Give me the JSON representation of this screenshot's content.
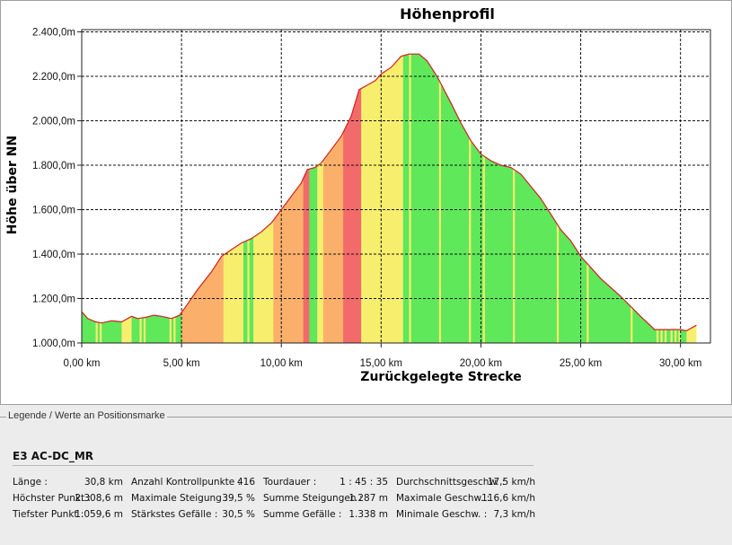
{
  "chart_data": {
    "type": "area",
    "title": "Höhenprofil",
    "xlabel": "Zurückgelegte Strecke",
    "ylabel": "Höhe über NN",
    "x_ticks": [
      "0,00 km",
      "5,00 km",
      "10,00 km",
      "15,00 km",
      "20,00 km",
      "25,00 km",
      "30,00 km"
    ],
    "y_ticks": [
      "1.000,0m",
      "1.200,0m",
      "1.400,0m",
      "1.600,0m",
      "1.800,0m",
      "2.000,0m",
      "2.200,0m",
      "2.400,0m"
    ],
    "xlim": [
      0,
      31.5
    ],
    "ylim": [
      1000,
      2410
    ],
    "grid": true,
    "x": [
      0,
      0.3,
      0.7,
      1.0,
      1.5,
      2.0,
      2.5,
      2.8,
      3.2,
      3.6,
      4.0,
      4.5,
      4.9,
      5.3,
      5.8,
      6.5,
      7.0,
      7.5,
      8.0,
      8.5,
      9.0,
      9.5,
      10.0,
      10.5,
      11.0,
      11.3,
      11.7,
      12.0,
      12.5,
      13.0,
      13.5,
      13.9,
      14.3,
      14.7,
      15.0,
      15.5,
      16.0,
      16.4,
      16.9,
      17.3,
      17.8,
      18.5,
      19.0,
      19.5,
      20.0,
      20.5,
      21.0,
      21.5,
      22.0,
      23.0,
      24.0,
      24.5,
      25.0,
      26.0,
      27.0,
      28.0,
      28.7,
      29.5,
      30.0,
      30.3,
      30.8
    ],
    "y": [
      1140,
      1110,
      1095,
      1090,
      1100,
      1095,
      1120,
      1110,
      1115,
      1125,
      1120,
      1110,
      1125,
      1175,
      1240,
      1320,
      1390,
      1420,
      1450,
      1470,
      1500,
      1540,
      1600,
      1660,
      1720,
      1780,
      1790,
      1810,
      1870,
      1930,
      2020,
      2140,
      2160,
      2180,
      2210,
      2240,
      2290,
      2300,
      2300,
      2270,
      2200,
      2080,
      1990,
      1910,
      1850,
      1820,
      1800,
      1790,
      1760,
      1650,
      1510,
      1460,
      1390,
      1290,
      1210,
      1120,
      1060,
      1060,
      1060,
      1055,
      1080
    ],
    "band_colors": [
      "#5ee85a",
      "#f7ee6e",
      "#fab06a",
      "#f36a6a"
    ],
    "line_color": "#d21e1e"
  },
  "legend_header": "Legende / Werte an Positionsmarke",
  "route_name": "E3 AC-DC_MR",
  "stats": [
    [
      {
        "label": "Länge :",
        "value": "30,8 km"
      },
      {
        "label": "Höchster Punkt :",
        "value": "2.308,6 m"
      },
      {
        "label": "Tiefster Punkt :",
        "value": "1.059,6 m"
      }
    ],
    [
      {
        "label": "Anzahl Kontrollpunkte :",
        "value": "416"
      },
      {
        "label": "Maximale Steigung :",
        "value": "39,5 %"
      },
      {
        "label": "Stärkstes Gefälle :",
        "value": "30,5 %"
      }
    ],
    [
      {
        "label": "Tourdauer :",
        "value": "1 : 45 : 35"
      },
      {
        "label": "Summe Steigungen :",
        "value": "1.287 m"
      },
      {
        "label": "Summe Gefälle :",
        "value": "1.338 m"
      }
    ],
    [
      {
        "label": "Durchschnittsgeschw. :",
        "value": "17,5 km/h"
      },
      {
        "label": "Maximale Geschw. :",
        "value": "116,6 km/h"
      },
      {
        "label": "Minimale Geschw. :",
        "value": "7,3 km/h"
      }
    ]
  ]
}
